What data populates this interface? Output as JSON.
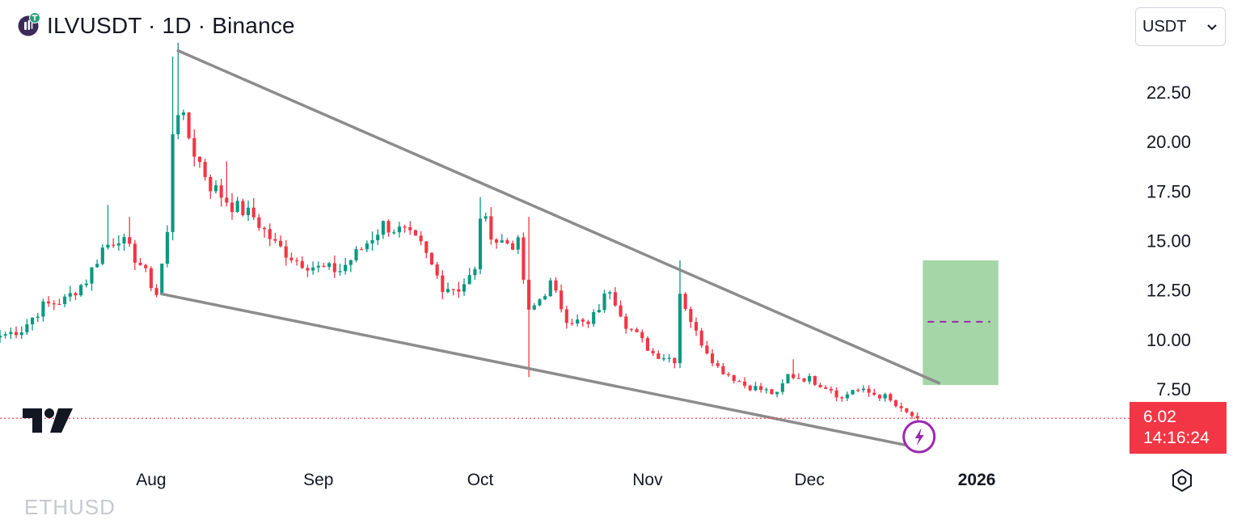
{
  "header": {
    "symbol_title": "ILVUSDT · 1D · Binance",
    "coin_icon": "illuvium-coin-icon"
  },
  "currency_selector": {
    "value": "USDT",
    "icon": "chevron-down-icon"
  },
  "price_label": {
    "price": "6.02",
    "countdown": "14:16:24"
  },
  "watermark": {
    "text": "ETHUSD"
  },
  "colors": {
    "up": "#089981",
    "down": "#f23645",
    "trendline": "#8c8c8c",
    "target_box": "#a5d6a7",
    "target_line": "#9c27b0",
    "price_line": "#f23645",
    "flash_badge": "#9c27b0"
  },
  "chart_data": {
    "type": "candlestick",
    "title": "ILVUSDT · 1D · Binance",
    "y_axis": {
      "side": "right",
      "ticks": [
        7.5,
        10.0,
        12.5,
        15.0,
        17.5,
        20.0,
        22.5
      ],
      "tick_labels": [
        "7.50",
        "10.00",
        "12.50",
        "15.00",
        "17.50",
        "20.00",
        "22.50"
      ],
      "range": [
        4.0,
        25.0
      ]
    },
    "x_axis": {
      "ticks": [
        {
          "label": "Aug",
          "date": "2025-08-01"
        },
        {
          "label": "Sep",
          "date": "2025-09-01"
        },
        {
          "label": "Oct",
          "date": "2025-10-01"
        },
        {
          "label": "Nov",
          "date": "2025-11-01"
        },
        {
          "label": "Dec",
          "date": "2025-12-01"
        },
        {
          "label": "2026",
          "date": "2026-01-01"
        }
      ],
      "range": [
        "2025-07-04",
        "2026-01-29"
      ]
    },
    "anchors": [
      {
        "date": "2025-07-04",
        "price": 10.2
      },
      {
        "date": "2025-07-08",
        "price": 10.5
      },
      {
        "date": "2025-07-12",
        "price": 11.7
      },
      {
        "date": "2025-07-16",
        "price": 12.0
      },
      {
        "date": "2025-07-20",
        "price": 13.0
      },
      {
        "date": "2025-07-23",
        "price": 14.6
      },
      {
        "date": "2025-07-26",
        "price": 15.2
      },
      {
        "date": "2025-07-30",
        "price": 13.8
      },
      {
        "date": "2025-08-02",
        "price": 12.3
      },
      {
        "date": "2025-08-04",
        "price": 15.3
      },
      {
        "date": "2025-08-05",
        "price": 20.6
      },
      {
        "date": "2025-08-06",
        "price": 21.7
      },
      {
        "date": "2025-08-09",
        "price": 19.5
      },
      {
        "date": "2025-08-12",
        "price": 17.8
      },
      {
        "date": "2025-08-16",
        "price": 16.8
      },
      {
        "date": "2025-08-20",
        "price": 16.2
      },
      {
        "date": "2025-08-24",
        "price": 14.8
      },
      {
        "date": "2025-08-28",
        "price": 14.0
      },
      {
        "date": "2025-09-01",
        "price": 13.6
      },
      {
        "date": "2025-09-05",
        "price": 13.5
      },
      {
        "date": "2025-09-09",
        "price": 14.6
      },
      {
        "date": "2025-09-13",
        "price": 15.8
      },
      {
        "date": "2025-09-17",
        "price": 15.4
      },
      {
        "date": "2025-09-20",
        "price": 14.7
      },
      {
        "date": "2025-09-24",
        "price": 12.7
      },
      {
        "date": "2025-09-27",
        "price": 12.6
      },
      {
        "date": "2025-09-30",
        "price": 13.4
      },
      {
        "date": "2025-10-01",
        "price": 16.3
      },
      {
        "date": "2025-10-04",
        "price": 15.0
      },
      {
        "date": "2025-10-08",
        "price": 14.8
      },
      {
        "date": "2025-10-10",
        "price": 11.3
      },
      {
        "date": "2025-10-14",
        "price": 12.8
      },
      {
        "date": "2025-10-17",
        "price": 11.1
      },
      {
        "date": "2025-10-21",
        "price": 10.7
      },
      {
        "date": "2025-10-25",
        "price": 12.6
      },
      {
        "date": "2025-10-28",
        "price": 10.8
      },
      {
        "date": "2025-11-02",
        "price": 9.3
      },
      {
        "date": "2025-11-06",
        "price": 9.0
      },
      {
        "date": "2025-11-07",
        "price": 12.4
      },
      {
        "date": "2025-11-10",
        "price": 10.3
      },
      {
        "date": "2025-11-14",
        "price": 8.6
      },
      {
        "date": "2025-11-19",
        "price": 7.7
      },
      {
        "date": "2025-11-23",
        "price": 7.4
      },
      {
        "date": "2025-11-25",
        "price": 7.2
      },
      {
        "date": "2025-11-27",
        "price": 8.2
      },
      {
        "date": "2025-12-01",
        "price": 8.0
      },
      {
        "date": "2025-12-05",
        "price": 7.5
      },
      {
        "date": "2025-12-07",
        "price": 7.0
      },
      {
        "date": "2025-12-09",
        "price": 7.5
      },
      {
        "date": "2025-12-12",
        "price": 7.3
      },
      {
        "date": "2025-12-15",
        "price": 7.1
      },
      {
        "date": "2025-12-18",
        "price": 6.4
      },
      {
        "date": "2025-12-21",
        "price": 6.02
      }
    ],
    "spikes": [
      {
        "date": "2025-07-24",
        "high": 16.8
      },
      {
        "date": "2025-07-28",
        "high": 16.2
      },
      {
        "date": "2025-08-05",
        "high": 24.3
      },
      {
        "date": "2025-08-06",
        "high": 25.0
      },
      {
        "date": "2025-08-15",
        "high": 19.0
      },
      {
        "date": "2025-10-01",
        "high": 17.2
      },
      {
        "date": "2025-10-10",
        "low": 8.1,
        "high": 16.2
      },
      {
        "date": "2025-11-07",
        "high": 14.0
      },
      {
        "date": "2025-11-28",
        "high": 9.0
      }
    ],
    "last_price": 6.02,
    "trendlines": [
      {
        "name": "",
        "from": {
          "date": "2025-08-06",
          "price": 24.6
        },
        "to": {
          "date": "2025-12-25",
          "price": 7.8
        }
      },
      {
        "name": "",
        "from": {
          "date": "2025-08-03",
          "price": 12.3
        },
        "to": {
          "date": "2025-12-20",
          "price": 4.6
        }
      }
    ],
    "target_box": {
      "from_date": "2025-12-22",
      "to_date": "2026-01-05",
      "low": 7.7,
      "high": 14.0,
      "mid": 10.9
    },
    "current_price_line": 6.02,
    "grid": false,
    "legend": "none"
  }
}
